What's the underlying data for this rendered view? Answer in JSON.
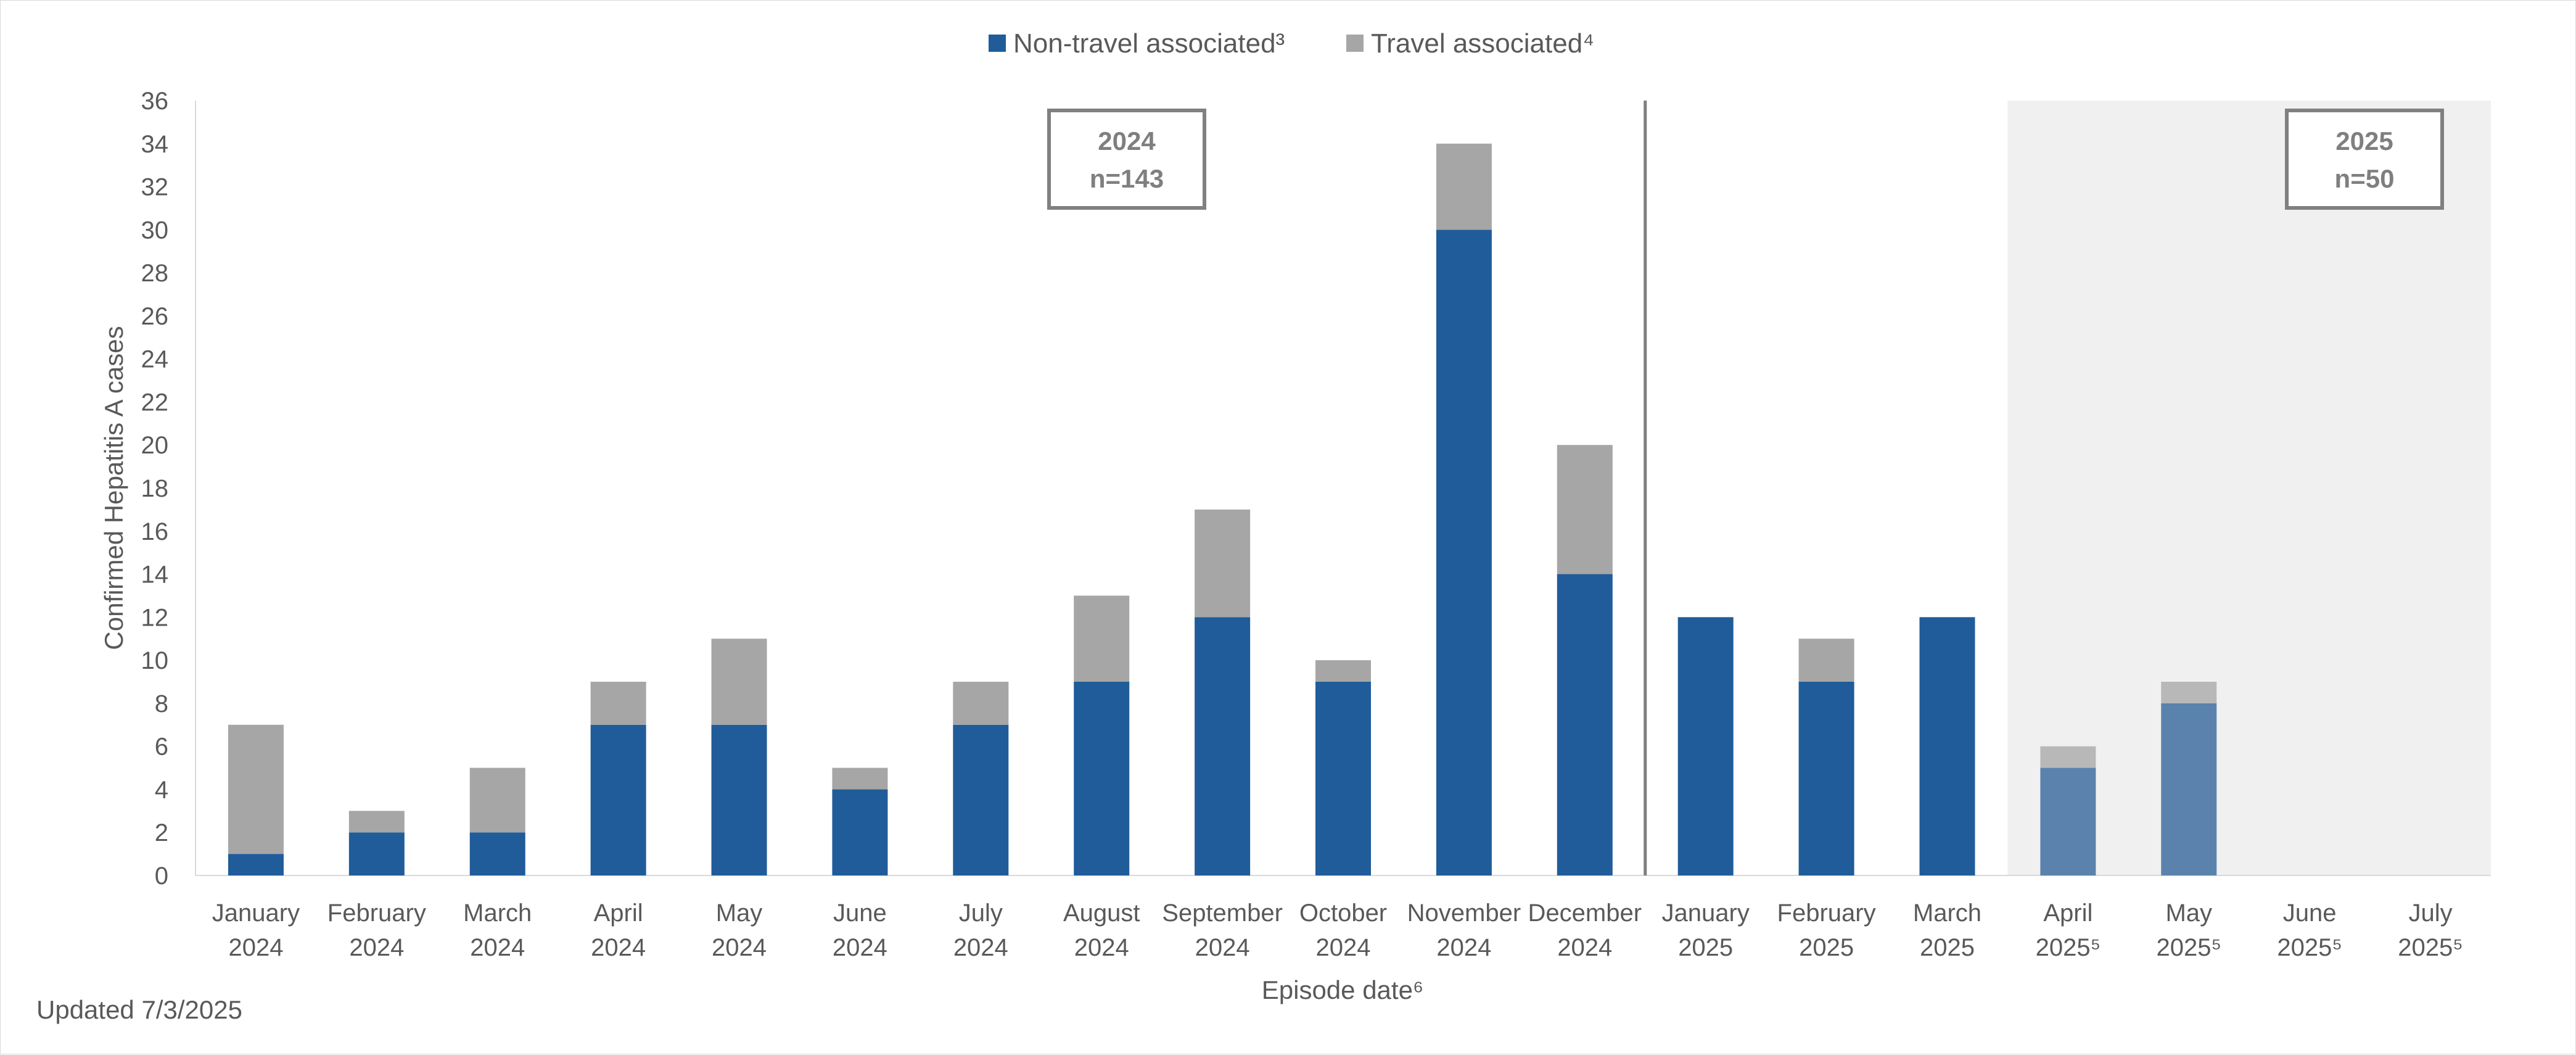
{
  "chart_data": {
    "type": "bar",
    "stacked": true,
    "title": "",
    "ylabel": "Confirmed Hepatitis A cases",
    "xlabel": "Episode date⁶",
    "ylim": [
      0,
      36
    ],
    "ytick_step": 2,
    "grid": false,
    "legend_position": "top-center",
    "categories": [
      {
        "month": "January",
        "year": "2024"
      },
      {
        "month": "February",
        "year": "2024"
      },
      {
        "month": "March",
        "year": "2024"
      },
      {
        "month": "April",
        "year": "2024"
      },
      {
        "month": "May",
        "year": "2024"
      },
      {
        "month": "June",
        "year": "2024"
      },
      {
        "month": "July",
        "year": "2024"
      },
      {
        "month": "August",
        "year": "2024"
      },
      {
        "month": "September",
        "year": "2024"
      },
      {
        "month": "October",
        "year": "2024"
      },
      {
        "month": "November",
        "year": "2024"
      },
      {
        "month": "December",
        "year": "2024"
      },
      {
        "month": "January",
        "year": "2025"
      },
      {
        "month": "February",
        "year": "2025"
      },
      {
        "month": "March",
        "year": "2025"
      },
      {
        "month": "April",
        "year": "2025⁵"
      },
      {
        "month": "May",
        "year": "2025⁵"
      },
      {
        "month": "June",
        "year": "2025⁵"
      },
      {
        "month": "July",
        "year": "2025⁵"
      }
    ],
    "series": [
      {
        "name": "Non-travel associated³",
        "color": "#1f5c99",
        "provisional_color": "#5a82ad",
        "values": [
          1,
          2,
          2,
          7,
          7,
          4,
          7,
          9,
          12,
          9,
          30,
          14,
          12,
          9,
          12,
          5,
          8,
          0,
          0
        ]
      },
      {
        "name": "Travel associated⁴",
        "color": "#a6a6a6",
        "provisional_color": "#b8b8b8",
        "values": [
          6,
          1,
          3,
          2,
          4,
          1,
          2,
          4,
          5,
          1,
          4,
          6,
          0,
          2,
          0,
          1,
          1,
          0,
          0
        ]
      }
    ],
    "provisional_from_index": 15,
    "year_divider_after_index": 11,
    "annotations": [
      {
        "year": "2024",
        "count": "n=143"
      },
      {
        "year": "2025",
        "count": "n=50"
      }
    ]
  },
  "footer": {
    "updated": "Updated 7/3/2025"
  }
}
